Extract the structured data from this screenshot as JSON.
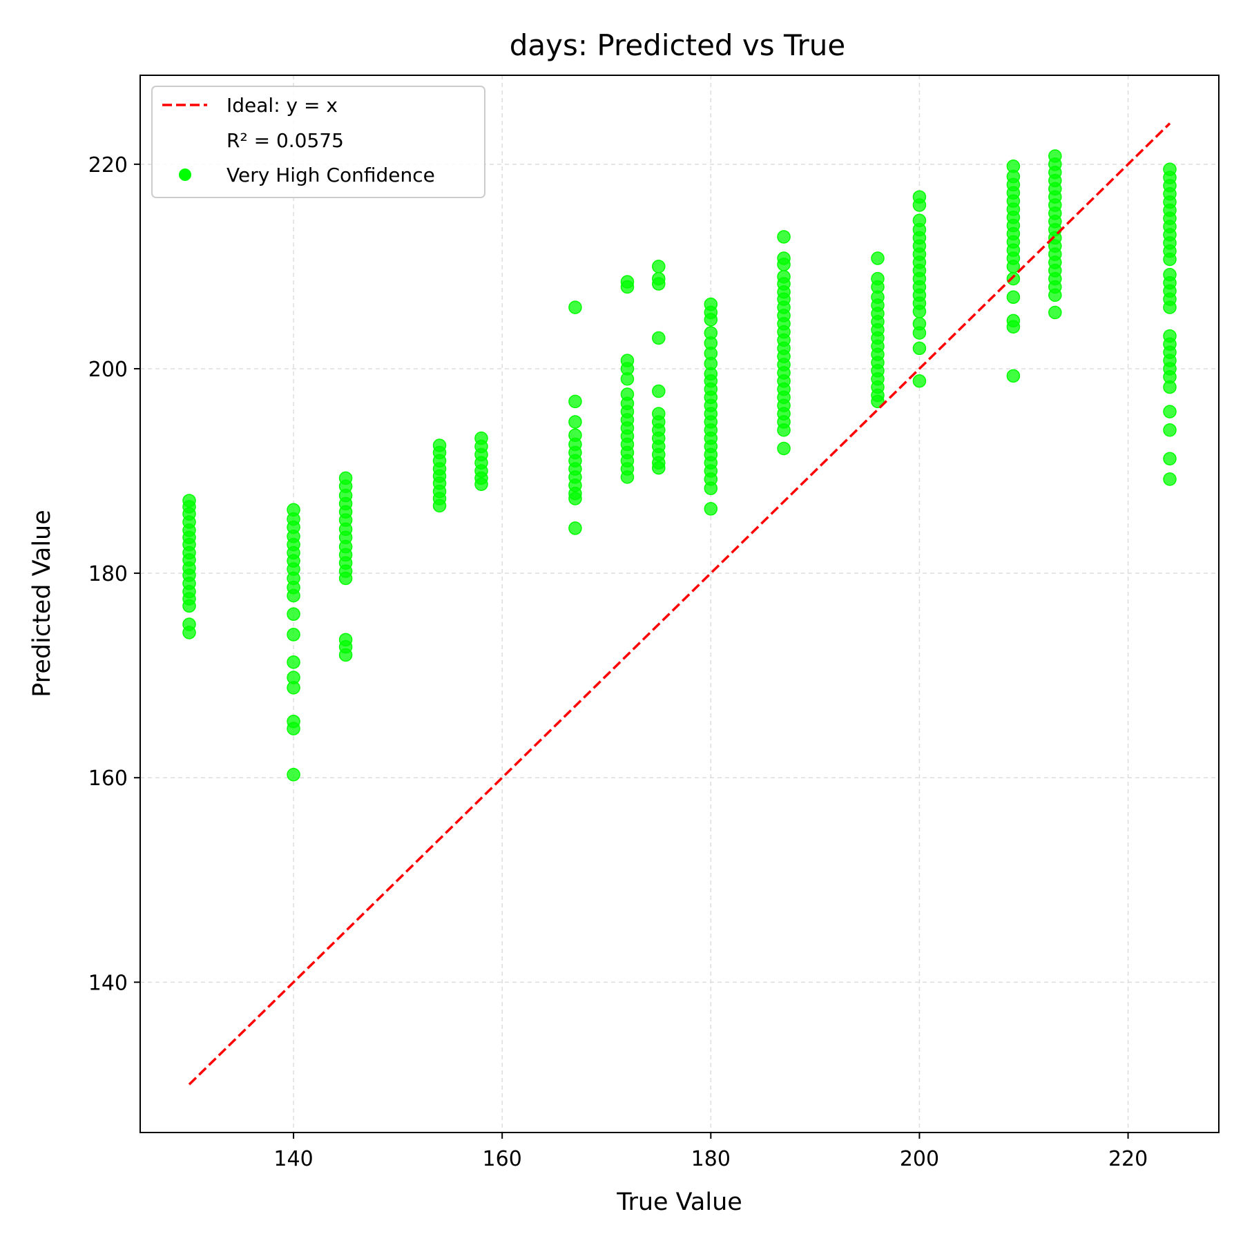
{
  "chart_data": {
    "type": "scatter",
    "title": "days: Predicted vs True",
    "xlabel": "True Value",
    "ylabel": "Predicted Value",
    "xlim": [
      125.3,
      228.7
    ],
    "ylim": [
      125.3,
      228.7
    ],
    "xticks": [
      140,
      160,
      180,
      200,
      220
    ],
    "yticks": [
      140,
      160,
      180,
      200,
      220
    ],
    "grid": true,
    "legend_position": "upper-left",
    "ideal_line": {
      "label": "Ideal: y = x",
      "color": "#ff0000",
      "x": [
        130,
        224
      ],
      "y": [
        130,
        224
      ]
    },
    "r2_label": "R² = 0.0575",
    "series": [
      {
        "name": "Very High Confidence",
        "color": "#00ff00",
        "points": [
          [
            130,
            187.1
          ],
          [
            130,
            186.5
          ],
          [
            130,
            185.8
          ],
          [
            130,
            185.0
          ],
          [
            130,
            184.2
          ],
          [
            130,
            183.5
          ],
          [
            130,
            182.8
          ],
          [
            130,
            182.0
          ],
          [
            130,
            181.3
          ],
          [
            130,
            180.5
          ],
          [
            130,
            179.8
          ],
          [
            130,
            179.0
          ],
          [
            130,
            178.2
          ],
          [
            130,
            177.5
          ],
          [
            130,
            176.8
          ],
          [
            130,
            175.0
          ],
          [
            130,
            174.2
          ],
          [
            140,
            186.2
          ],
          [
            140,
            185.3
          ],
          [
            140,
            184.5
          ],
          [
            140,
            183.6
          ],
          [
            140,
            182.8
          ],
          [
            140,
            182.0
          ],
          [
            140,
            181.2
          ],
          [
            140,
            180.4
          ],
          [
            140,
            179.5
          ],
          [
            140,
            178.6
          ],
          [
            140,
            177.8
          ],
          [
            140,
            176.0
          ],
          [
            140,
            174.0
          ],
          [
            140,
            171.3
          ],
          [
            140,
            169.8
          ],
          [
            140,
            168.8
          ],
          [
            140,
            165.5
          ],
          [
            140,
            164.8
          ],
          [
            140,
            160.3
          ],
          [
            145,
            189.3
          ],
          [
            145,
            188.5
          ],
          [
            145,
            187.6
          ],
          [
            145,
            186.8
          ],
          [
            145,
            186.0
          ],
          [
            145,
            185.2
          ],
          [
            145,
            184.3
          ],
          [
            145,
            183.5
          ],
          [
            145,
            182.6
          ],
          [
            145,
            181.8
          ],
          [
            145,
            181.0
          ],
          [
            145,
            180.2
          ],
          [
            145,
            179.5
          ],
          [
            145,
            173.5
          ],
          [
            145,
            172.8
          ],
          [
            145,
            172.0
          ],
          [
            154,
            192.5
          ],
          [
            154,
            191.8
          ],
          [
            154,
            191.0
          ],
          [
            154,
            190.2
          ],
          [
            154,
            189.5
          ],
          [
            154,
            188.8
          ],
          [
            154,
            188.0
          ],
          [
            154,
            187.3
          ],
          [
            154,
            186.6
          ],
          [
            158,
            193.2
          ],
          [
            158,
            192.4
          ],
          [
            158,
            191.6
          ],
          [
            158,
            190.8
          ],
          [
            158,
            190.0
          ],
          [
            158,
            189.3
          ],
          [
            158,
            188.7
          ],
          [
            167,
            206.0
          ],
          [
            167,
            196.8
          ],
          [
            167,
            194.8
          ],
          [
            167,
            193.5
          ],
          [
            167,
            192.6
          ],
          [
            167,
            191.8
          ],
          [
            167,
            191.0
          ],
          [
            167,
            190.2
          ],
          [
            167,
            189.4
          ],
          [
            167,
            188.6
          ],
          [
            167,
            187.8
          ],
          [
            167,
            187.3
          ],
          [
            167,
            184.4
          ],
          [
            172,
            208.5
          ],
          [
            172,
            208.0
          ],
          [
            172,
            200.8
          ],
          [
            172,
            200.0
          ],
          [
            172,
            199.0
          ],
          [
            172,
            197.5
          ],
          [
            172,
            196.6
          ],
          [
            172,
            195.8
          ],
          [
            172,
            195.0
          ],
          [
            172,
            194.2
          ],
          [
            172,
            193.4
          ],
          [
            172,
            192.6
          ],
          [
            172,
            191.8
          ],
          [
            172,
            191.0
          ],
          [
            172,
            190.2
          ],
          [
            172,
            189.4
          ],
          [
            175,
            210.0
          ],
          [
            175,
            208.8
          ],
          [
            175,
            208.3
          ],
          [
            175,
            203.0
          ],
          [
            175,
            197.8
          ],
          [
            175,
            195.6
          ],
          [
            175,
            194.8
          ],
          [
            175,
            194.0
          ],
          [
            175,
            193.2
          ],
          [
            175,
            192.4
          ],
          [
            175,
            191.6
          ],
          [
            175,
            190.8
          ],
          [
            175,
            190.3
          ],
          [
            180,
            206.3
          ],
          [
            180,
            205.5
          ],
          [
            180,
            204.8
          ],
          [
            180,
            203.5
          ],
          [
            180,
            202.5
          ],
          [
            180,
            201.5
          ],
          [
            180,
            200.5
          ],
          [
            180,
            199.5
          ],
          [
            180,
            198.8
          ],
          [
            180,
            198.0
          ],
          [
            180,
            197.2
          ],
          [
            180,
            196.4
          ],
          [
            180,
            195.6
          ],
          [
            180,
            194.8
          ],
          [
            180,
            194.0
          ],
          [
            180,
            193.2
          ],
          [
            180,
            192.4
          ],
          [
            180,
            191.6
          ],
          [
            180,
            190.8
          ],
          [
            180,
            190.0
          ],
          [
            180,
            189.2
          ],
          [
            180,
            188.3
          ],
          [
            180,
            186.3
          ],
          [
            187,
            212.9
          ],
          [
            187,
            210.8
          ],
          [
            187,
            210.2
          ],
          [
            187,
            209.0
          ],
          [
            187,
            208.3
          ],
          [
            187,
            207.5
          ],
          [
            187,
            206.8
          ],
          [
            187,
            206.0
          ],
          [
            187,
            205.2
          ],
          [
            187,
            204.4
          ],
          [
            187,
            203.6
          ],
          [
            187,
            202.8
          ],
          [
            187,
            202.0
          ],
          [
            187,
            201.2
          ],
          [
            187,
            200.4
          ],
          [
            187,
            199.6
          ],
          [
            187,
            198.8
          ],
          [
            187,
            198.0
          ],
          [
            187,
            197.2
          ],
          [
            187,
            196.4
          ],
          [
            187,
            195.6
          ],
          [
            187,
            194.8
          ],
          [
            187,
            194.0
          ],
          [
            187,
            192.2
          ],
          [
            196,
            210.8
          ],
          [
            196,
            208.8
          ],
          [
            196,
            208.0
          ],
          [
            196,
            207.0
          ],
          [
            196,
            206.2
          ],
          [
            196,
            205.4
          ],
          [
            196,
            204.6
          ],
          [
            196,
            203.8
          ],
          [
            196,
            203.0
          ],
          [
            196,
            202.2
          ],
          [
            196,
            201.4
          ],
          [
            196,
            200.6
          ],
          [
            196,
            199.8
          ],
          [
            196,
            199.0
          ],
          [
            196,
            198.2
          ],
          [
            196,
            197.4
          ],
          [
            196,
            196.8
          ],
          [
            200,
            216.8
          ],
          [
            200,
            216.0
          ],
          [
            200,
            214.5
          ],
          [
            200,
            213.6
          ],
          [
            200,
            212.8
          ],
          [
            200,
            212.0
          ],
          [
            200,
            211.2
          ],
          [
            200,
            210.4
          ],
          [
            200,
            209.6
          ],
          [
            200,
            208.8
          ],
          [
            200,
            208.0
          ],
          [
            200,
            207.2
          ],
          [
            200,
            206.4
          ],
          [
            200,
            205.6
          ],
          [
            200,
            204.4
          ],
          [
            200,
            203.5
          ],
          [
            200,
            202.0
          ],
          [
            200,
            198.8
          ],
          [
            209,
            219.8
          ],
          [
            209,
            218.8
          ],
          [
            209,
            218.0
          ],
          [
            209,
            217.2
          ],
          [
            209,
            216.4
          ],
          [
            209,
            215.6
          ],
          [
            209,
            214.8
          ],
          [
            209,
            214.0
          ],
          [
            209,
            213.2
          ],
          [
            209,
            212.4
          ],
          [
            209,
            211.6
          ],
          [
            209,
            210.8
          ],
          [
            209,
            210.0
          ],
          [
            209,
            208.8
          ],
          [
            209,
            207.0
          ],
          [
            209,
            204.7
          ],
          [
            209,
            204.1
          ],
          [
            209,
            199.3
          ],
          [
            213,
            220.8
          ],
          [
            213,
            220.0
          ],
          [
            213,
            219.2
          ],
          [
            213,
            218.4
          ],
          [
            213,
            217.6
          ],
          [
            213,
            216.8
          ],
          [
            213,
            216.0
          ],
          [
            213,
            215.2
          ],
          [
            213,
            214.4
          ],
          [
            213,
            213.6
          ],
          [
            213,
            212.8
          ],
          [
            213,
            212.0
          ],
          [
            213,
            211.2
          ],
          [
            213,
            210.4
          ],
          [
            213,
            209.6
          ],
          [
            213,
            208.8
          ],
          [
            213,
            208.0
          ],
          [
            213,
            207.2
          ],
          [
            213,
            205.5
          ],
          [
            224,
            219.5
          ],
          [
            224,
            218.7
          ],
          [
            224,
            217.9
          ],
          [
            224,
            217.1
          ],
          [
            224,
            216.3
          ],
          [
            224,
            215.5
          ],
          [
            224,
            214.7
          ],
          [
            224,
            213.9
          ],
          [
            224,
            213.1
          ],
          [
            224,
            212.3
          ],
          [
            224,
            211.5
          ],
          [
            224,
            210.7
          ],
          [
            224,
            209.2
          ],
          [
            224,
            208.4
          ],
          [
            224,
            207.6
          ],
          [
            224,
            206.8
          ],
          [
            224,
            206.0
          ],
          [
            224,
            203.2
          ],
          [
            224,
            202.4
          ],
          [
            224,
            201.6
          ],
          [
            224,
            200.8
          ],
          [
            224,
            200.0
          ],
          [
            224,
            199.2
          ],
          [
            224,
            198.2
          ],
          [
            224,
            195.8
          ],
          [
            224,
            194.0
          ],
          [
            224,
            191.2
          ],
          [
            224,
            189.2
          ]
        ]
      }
    ]
  }
}
